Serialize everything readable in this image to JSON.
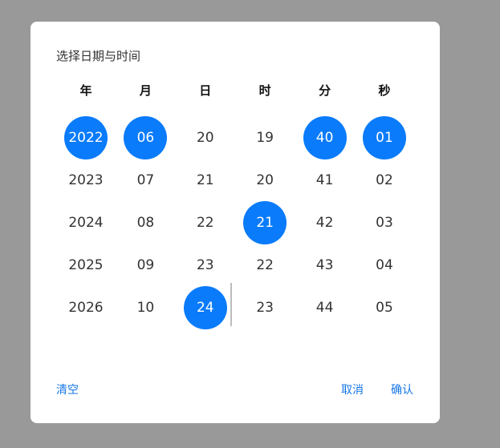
{
  "dialog": {
    "title": "选择日期与时间"
  },
  "picker": {
    "columns": [
      {
        "key": "year",
        "header": "年",
        "items": [
          "2022",
          "2023",
          "2024",
          "2025",
          "2026"
        ],
        "selected": "2022"
      },
      {
        "key": "month",
        "header": "月",
        "items": [
          "06",
          "07",
          "08",
          "09",
          "10"
        ],
        "selected": "06"
      },
      {
        "key": "day",
        "header": "日",
        "items": [
          "20",
          "21",
          "22",
          "23",
          "24"
        ],
        "selected": "24"
      },
      {
        "key": "hour",
        "header": "时",
        "items": [
          "19",
          "20",
          "21",
          "22",
          "23"
        ],
        "selected": "21"
      },
      {
        "key": "minute",
        "header": "分",
        "items": [
          "40",
          "41",
          "42",
          "43",
          "44"
        ],
        "selected": "40"
      },
      {
        "key": "second",
        "header": "秒",
        "items": [
          "01",
          "02",
          "03",
          "04",
          "05"
        ],
        "selected": "01"
      }
    ]
  },
  "footer": {
    "clear_label": "清空",
    "cancel_label": "取消",
    "confirm_label": "确认"
  },
  "colors": {
    "backdrop": "#999999",
    "selected": "#0a7bfa",
    "link": "#1677e6"
  }
}
